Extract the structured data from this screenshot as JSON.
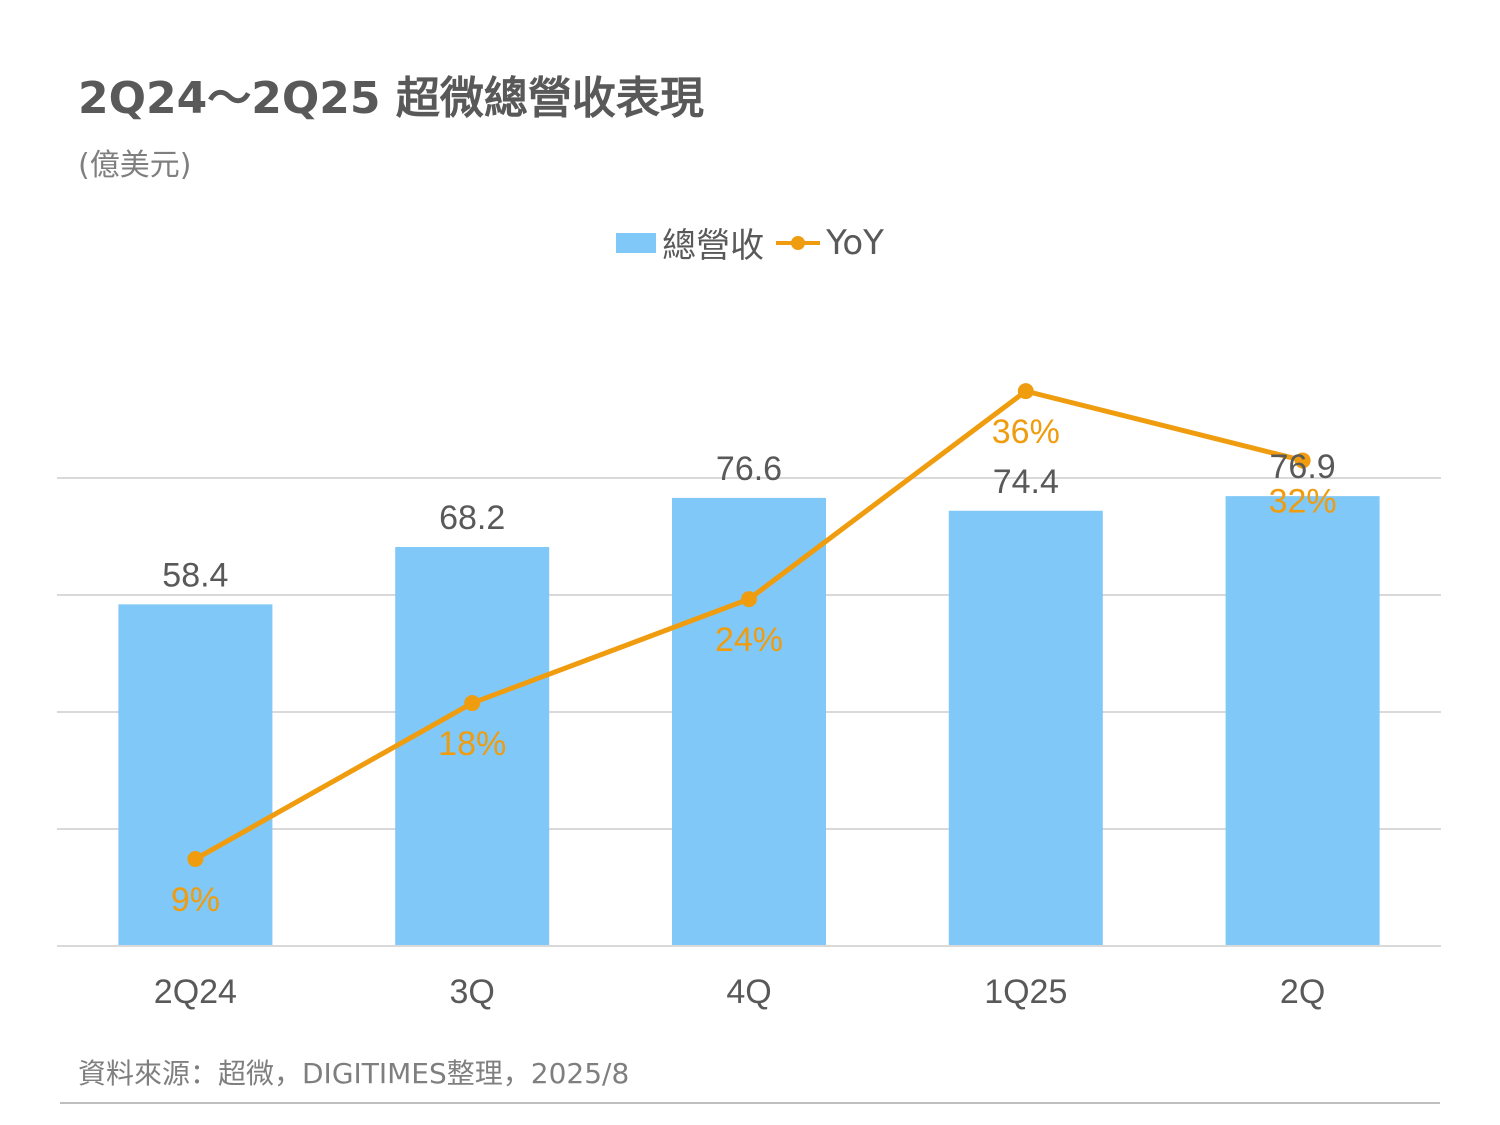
{
  "title": "2Q24～2Q25 超微總營收表現",
  "subtitle": "(億美元)",
  "legend": {
    "bar_label": "總營收",
    "line_label": "YoY"
  },
  "source": "資料來源：超微，DIGITIMES整理，2025/8",
  "colors": {
    "bar": "#7fc8f8",
    "line": "#f09c0f",
    "grid": "#d9d9d9",
    "bar_label": "#595959",
    "line_label": "#f09c0f"
  },
  "chart_data": {
    "type": "bar",
    "categories": [
      "2Q24",
      "3Q",
      "4Q",
      "1Q25",
      "2Q"
    ],
    "series": [
      {
        "name": "總營收",
        "type": "bar",
        "values": [
          58.4,
          68.2,
          76.6,
          74.4,
          76.9
        ],
        "labels": [
          "58.4",
          "68.2",
          "76.6",
          "74.4",
          "76.9"
        ]
      },
      {
        "name": "YoY",
        "type": "line",
        "values": [
          9,
          18,
          24,
          36,
          32
        ],
        "labels": [
          "9%",
          "18%",
          "24%",
          "36%",
          "32%"
        ]
      }
    ],
    "bar_ylim": [
      0,
      90
    ],
    "line_ylim": [
      0,
      40
    ],
    "grid": true,
    "legend_position": "top"
  }
}
